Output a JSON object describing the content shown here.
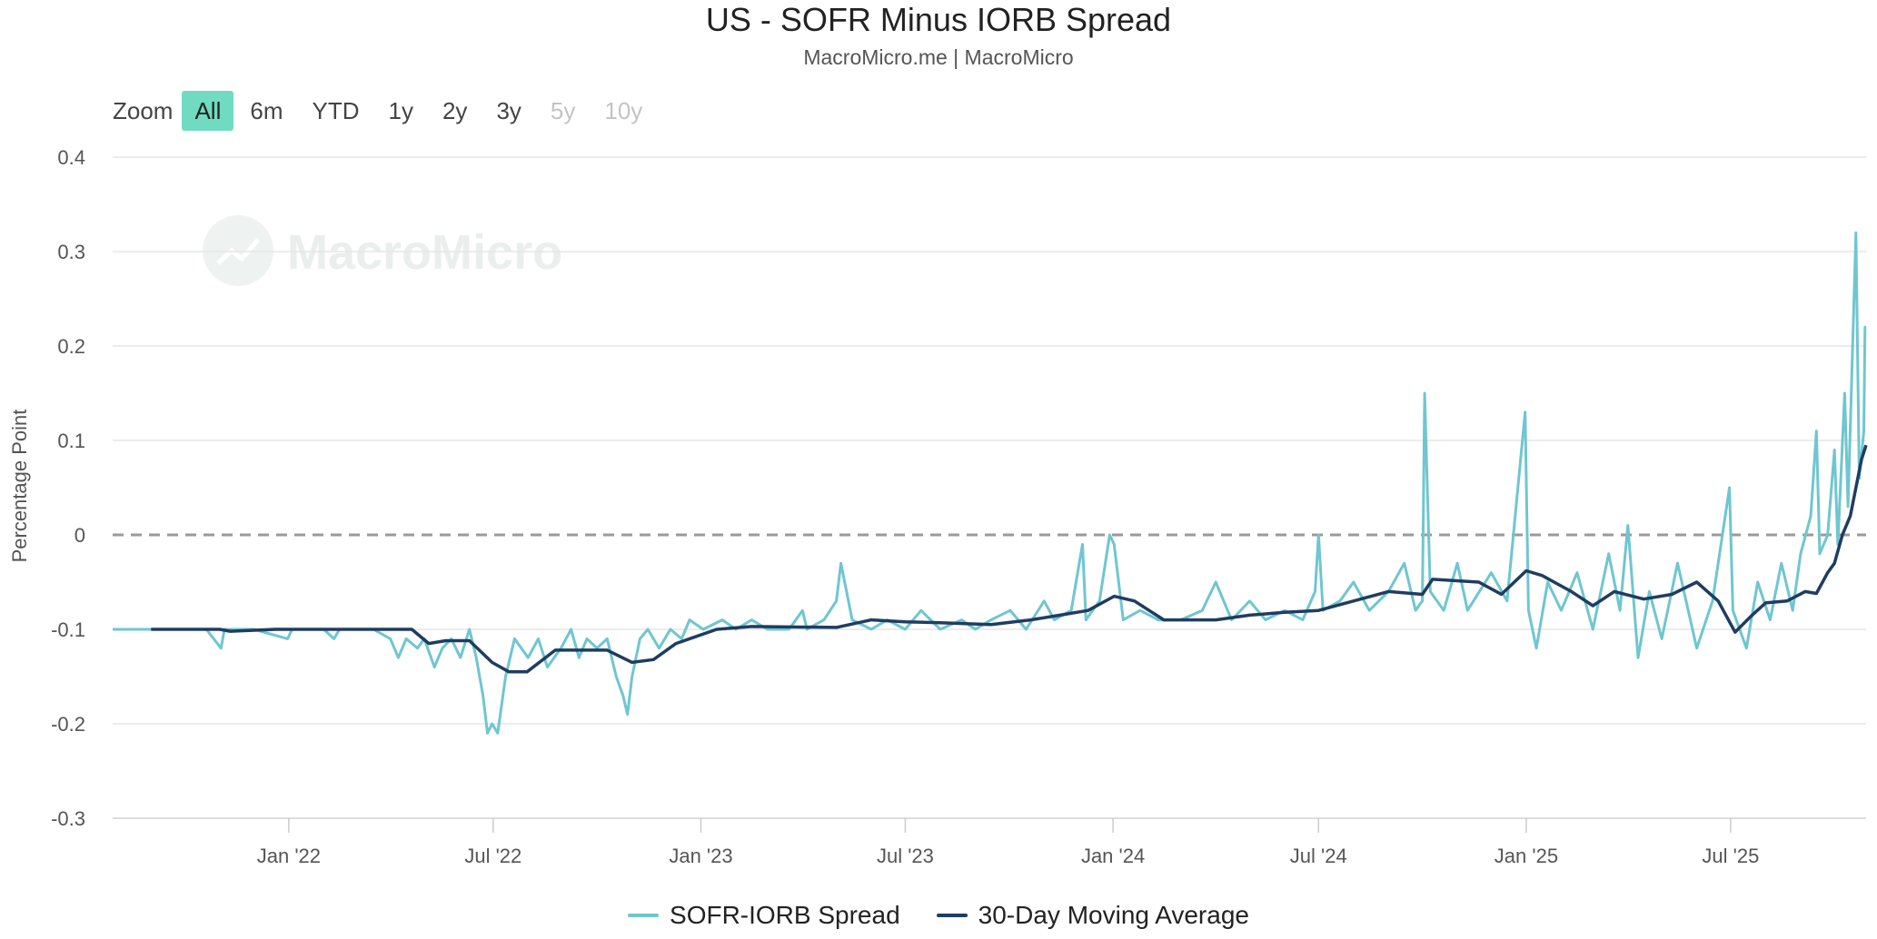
{
  "header": {
    "title": "US - SOFR Minus IORB Spread",
    "subtitle": "MacroMicro.me | MacroMicro"
  },
  "zoom": {
    "label": "Zoom",
    "buttons": [
      {
        "label": "All",
        "state": "active"
      },
      {
        "label": "6m",
        "state": "normal"
      },
      {
        "label": "YTD",
        "state": "normal"
      },
      {
        "label": "1y",
        "state": "normal"
      },
      {
        "label": "2y",
        "state": "normal"
      },
      {
        "label": "3y",
        "state": "normal"
      },
      {
        "label": "5y",
        "state": "disabled"
      },
      {
        "label": "10y",
        "state": "disabled"
      }
    ]
  },
  "watermark": {
    "text": "MacroMicro",
    "icon": "macromicro-logo-icon"
  },
  "colors": {
    "spread": "#6fc6d0",
    "average": "#1f3d60",
    "zero_line": "#9a9a9a",
    "grid": "#e6e6e6",
    "zoom_active": "#70dbc0"
  },
  "chart_data": {
    "type": "line",
    "title": "US - SOFR Minus IORB Spread",
    "subtitle": "MacroMicro.me | MacroMicro",
    "xlabel": "",
    "ylabel": "Percentage Point",
    "ylim": [
      -0.3,
      0.4
    ],
    "yticks": [
      -0.3,
      -0.2,
      -0.1,
      0,
      0.1,
      0.2,
      0.3,
      0.4
    ],
    "ytick_labels": [
      "-0.3",
      "-0.2",
      "-0.1",
      "0",
      "0.1",
      "0.2",
      "0.3",
      "0.4"
    ],
    "xlim": [
      "2021-07-29",
      "2025-10-29"
    ],
    "xticks": [
      {
        "date": "2022-01-01",
        "label": "Jan '22"
      },
      {
        "date": "2022-07-01",
        "label": "Jul '22"
      },
      {
        "date": "2023-01-01",
        "label": "Jan '23"
      },
      {
        "date": "2023-07-01",
        "label": "Jul '23"
      },
      {
        "date": "2024-01-01",
        "label": "Jan '24"
      },
      {
        "date": "2024-07-01",
        "label": "Jul '24"
      },
      {
        "date": "2025-01-01",
        "label": "Jan '25"
      },
      {
        "date": "2025-07-01",
        "label": "Jul '25"
      }
    ],
    "reference_line": {
      "y": 0,
      "style": "dashed"
    },
    "legend_position": "bottom",
    "series": [
      {
        "name": "SOFR-IORB Spread",
        "points": [
          [
            "2021-07-29",
            -0.1
          ],
          [
            "2021-09-15",
            -0.1
          ],
          [
            "2021-10-20",
            -0.1
          ],
          [
            "2021-11-02",
            -0.12
          ],
          [
            "2021-11-05",
            -0.1
          ],
          [
            "2021-12-01",
            -0.1
          ],
          [
            "2021-12-31",
            -0.11
          ],
          [
            "2022-01-04",
            -0.1
          ],
          [
            "2022-02-01",
            -0.1
          ],
          [
            "2022-02-10",
            -0.11
          ],
          [
            "2022-02-15",
            -0.1
          ],
          [
            "2022-03-17",
            -0.1
          ],
          [
            "2022-04-01",
            -0.11
          ],
          [
            "2022-04-08",
            -0.13
          ],
          [
            "2022-04-15",
            -0.11
          ],
          [
            "2022-04-25",
            -0.12
          ],
          [
            "2022-05-01",
            -0.11
          ],
          [
            "2022-05-10",
            -0.14
          ],
          [
            "2022-05-17",
            -0.12
          ],
          [
            "2022-05-25",
            -0.11
          ],
          [
            "2022-06-02",
            -0.13
          ],
          [
            "2022-06-10",
            -0.1
          ],
          [
            "2022-06-16",
            -0.13
          ],
          [
            "2022-06-22",
            -0.17
          ],
          [
            "2022-06-26",
            -0.21
          ],
          [
            "2022-06-30",
            -0.2
          ],
          [
            "2022-07-05",
            -0.21
          ],
          [
            "2022-07-12",
            -0.15
          ],
          [
            "2022-07-20",
            -0.11
          ],
          [
            "2022-08-01",
            -0.13
          ],
          [
            "2022-08-10",
            -0.11
          ],
          [
            "2022-08-18",
            -0.14
          ],
          [
            "2022-08-30",
            -0.12
          ],
          [
            "2022-09-08",
            -0.1
          ],
          [
            "2022-09-15",
            -0.13
          ],
          [
            "2022-09-22",
            -0.11
          ],
          [
            "2022-10-01",
            -0.12
          ],
          [
            "2022-10-10",
            -0.11
          ],
          [
            "2022-10-18",
            -0.15
          ],
          [
            "2022-10-24",
            -0.17
          ],
          [
            "2022-10-28",
            -0.19
          ],
          [
            "2022-11-01",
            -0.15
          ],
          [
            "2022-11-08",
            -0.11
          ],
          [
            "2022-11-15",
            -0.1
          ],
          [
            "2022-11-25",
            -0.12
          ],
          [
            "2022-12-05",
            -0.1
          ],
          [
            "2022-12-15",
            -0.11
          ],
          [
            "2022-12-22",
            -0.09
          ],
          [
            "2023-01-03",
            -0.1
          ],
          [
            "2023-01-20",
            -0.09
          ],
          [
            "2023-02-01",
            -0.1
          ],
          [
            "2023-02-15",
            -0.09
          ],
          [
            "2023-03-01",
            -0.1
          ],
          [
            "2023-03-20",
            -0.1
          ],
          [
            "2023-04-01",
            -0.08
          ],
          [
            "2023-04-05",
            -0.1
          ],
          [
            "2023-04-20",
            -0.09
          ],
          [
            "2023-05-01",
            -0.07
          ],
          [
            "2023-05-05",
            -0.03
          ],
          [
            "2023-05-10",
            -0.06
          ],
          [
            "2023-05-15",
            -0.09
          ],
          [
            "2023-06-01",
            -0.1
          ],
          [
            "2023-06-15",
            -0.09
          ],
          [
            "2023-07-01",
            -0.1
          ],
          [
            "2023-07-15",
            -0.08
          ],
          [
            "2023-08-01",
            -0.1
          ],
          [
            "2023-08-20",
            -0.09
          ],
          [
            "2023-09-01",
            -0.1
          ],
          [
            "2023-09-15",
            -0.09
          ],
          [
            "2023-10-02",
            -0.08
          ],
          [
            "2023-10-16",
            -0.1
          ],
          [
            "2023-11-01",
            -0.07
          ],
          [
            "2023-11-10",
            -0.09
          ],
          [
            "2023-11-25",
            -0.08
          ],
          [
            "2023-12-05",
            -0.01
          ],
          [
            "2023-12-08",
            -0.09
          ],
          [
            "2023-12-20",
            -0.07
          ],
          [
            "2023-12-29",
            0.0
          ],
          [
            "2024-01-02",
            -0.01
          ],
          [
            "2024-01-10",
            -0.09
          ],
          [
            "2024-01-25",
            -0.08
          ],
          [
            "2024-02-10",
            -0.09
          ],
          [
            "2024-03-01",
            -0.09
          ],
          [
            "2024-03-20",
            -0.08
          ],
          [
            "2024-04-01",
            -0.05
          ],
          [
            "2024-04-15",
            -0.09
          ],
          [
            "2024-05-01",
            -0.07
          ],
          [
            "2024-05-15",
            -0.09
          ],
          [
            "2024-06-01",
            -0.08
          ],
          [
            "2024-06-17",
            -0.09
          ],
          [
            "2024-06-28",
            -0.06
          ],
          [
            "2024-07-01",
            0.0
          ],
          [
            "2024-07-05",
            -0.08
          ],
          [
            "2024-07-20",
            -0.07
          ],
          [
            "2024-08-01",
            -0.05
          ],
          [
            "2024-08-15",
            -0.08
          ],
          [
            "2024-09-01",
            -0.06
          ],
          [
            "2024-09-15",
            -0.03
          ],
          [
            "2024-09-25",
            -0.08
          ],
          [
            "2024-10-01",
            -0.07
          ],
          [
            "2024-10-03",
            0.15
          ],
          [
            "2024-10-08",
            -0.06
          ],
          [
            "2024-10-20",
            -0.08
          ],
          [
            "2024-11-01",
            -0.03
          ],
          [
            "2024-11-10",
            -0.08
          ],
          [
            "2024-12-01",
            -0.04
          ],
          [
            "2024-12-15",
            -0.07
          ],
          [
            "2024-12-31",
            0.13
          ],
          [
            "2025-01-03",
            -0.08
          ],
          [
            "2025-01-10",
            -0.12
          ],
          [
            "2025-01-20",
            -0.05
          ],
          [
            "2025-02-01",
            -0.08
          ],
          [
            "2025-02-15",
            -0.04
          ],
          [
            "2025-03-01",
            -0.1
          ],
          [
            "2025-03-15",
            -0.02
          ],
          [
            "2025-03-25",
            -0.08
          ],
          [
            "2025-04-01",
            0.01
          ],
          [
            "2025-04-10",
            -0.13
          ],
          [
            "2025-04-20",
            -0.06
          ],
          [
            "2025-05-01",
            -0.11
          ],
          [
            "2025-05-15",
            -0.03
          ],
          [
            "2025-06-01",
            -0.12
          ],
          [
            "2025-06-15",
            -0.07
          ],
          [
            "2025-06-30",
            0.05
          ],
          [
            "2025-07-03",
            -0.08
          ],
          [
            "2025-07-15",
            -0.12
          ],
          [
            "2025-07-25",
            -0.05
          ],
          [
            "2025-08-05",
            -0.09
          ],
          [
            "2025-08-15",
            -0.03
          ],
          [
            "2025-08-25",
            -0.08
          ],
          [
            "2025-09-01",
            -0.02
          ],
          [
            "2025-09-10",
            0.02
          ],
          [
            "2025-09-15",
            0.11
          ],
          [
            "2025-09-18",
            -0.02
          ],
          [
            "2025-09-25",
            0.0
          ],
          [
            "2025-10-01",
            0.09
          ],
          [
            "2025-10-04",
            -0.01
          ],
          [
            "2025-10-10",
            0.15
          ],
          [
            "2025-10-13",
            0.03
          ],
          [
            "2025-10-20",
            0.32
          ],
          [
            "2025-10-23",
            0.06
          ],
          [
            "2025-10-27",
            0.11
          ],
          [
            "2025-10-28",
            0.22
          ],
          [
            "2025-10-29",
            0.22
          ]
        ]
      },
      {
        "name": "30-Day Moving Average",
        "points": [
          [
            "2021-09-01",
            -0.1
          ],
          [
            "2021-11-01",
            -0.1
          ],
          [
            "2021-11-10",
            -0.102
          ],
          [
            "2021-12-20",
            -0.1
          ],
          [
            "2022-03-01",
            -0.1
          ],
          [
            "2022-04-20",
            -0.1
          ],
          [
            "2022-05-05",
            -0.115
          ],
          [
            "2022-05-20",
            -0.112
          ],
          [
            "2022-06-10",
            -0.112
          ],
          [
            "2022-06-30",
            -0.135
          ],
          [
            "2022-07-15",
            -0.145
          ],
          [
            "2022-07-31",
            -0.145
          ],
          [
            "2022-08-25",
            -0.122
          ],
          [
            "2022-10-10",
            -0.122
          ],
          [
            "2022-11-01",
            -0.135
          ],
          [
            "2022-11-20",
            -0.132
          ],
          [
            "2022-12-10",
            -0.115
          ],
          [
            "2023-01-15",
            -0.1
          ],
          [
            "2023-02-15",
            -0.097
          ],
          [
            "2023-05-01",
            -0.098
          ],
          [
            "2023-06-01",
            -0.09
          ],
          [
            "2023-07-01",
            -0.092
          ],
          [
            "2023-08-01",
            -0.093
          ],
          [
            "2023-09-15",
            -0.095
          ],
          [
            "2023-10-20",
            -0.09
          ],
          [
            "2023-11-15",
            -0.085
          ],
          [
            "2023-12-10",
            -0.08
          ],
          [
            "2024-01-02",
            -0.065
          ],
          [
            "2024-01-20",
            -0.07
          ],
          [
            "2024-02-15",
            -0.09
          ],
          [
            "2024-04-01",
            -0.09
          ],
          [
            "2024-05-01",
            -0.085
          ],
          [
            "2024-06-01",
            -0.082
          ],
          [
            "2024-07-01",
            -0.08
          ],
          [
            "2024-08-01",
            -0.07
          ],
          [
            "2024-09-01",
            -0.06
          ],
          [
            "2024-10-01",
            -0.063
          ],
          [
            "2024-10-10",
            -0.047
          ],
          [
            "2024-11-20",
            -0.05
          ],
          [
            "2024-12-10",
            -0.063
          ],
          [
            "2025-01-01",
            -0.038
          ],
          [
            "2025-01-15",
            -0.043
          ],
          [
            "2025-02-10",
            -0.06
          ],
          [
            "2025-03-01",
            -0.075
          ],
          [
            "2025-03-20",
            -0.06
          ],
          [
            "2025-04-15",
            -0.068
          ],
          [
            "2025-05-10",
            -0.063
          ],
          [
            "2025-06-01",
            -0.05
          ],
          [
            "2025-06-20",
            -0.07
          ],
          [
            "2025-07-05",
            -0.103
          ],
          [
            "2025-07-20",
            -0.085
          ],
          [
            "2025-08-01",
            -0.072
          ],
          [
            "2025-08-20",
            -0.07
          ],
          [
            "2025-09-05",
            -0.06
          ],
          [
            "2025-09-15",
            -0.062
          ],
          [
            "2025-09-25",
            -0.04
          ],
          [
            "2025-10-01",
            -0.03
          ],
          [
            "2025-10-08",
            0.0
          ],
          [
            "2025-10-15",
            0.02
          ],
          [
            "2025-10-20",
            0.05
          ],
          [
            "2025-10-25",
            0.08
          ],
          [
            "2025-10-29",
            0.095
          ]
        ]
      }
    ]
  },
  "legend": {
    "items": [
      {
        "label": "SOFR-IORB Spread"
      },
      {
        "label": "30-Day Moving Average"
      }
    ]
  }
}
